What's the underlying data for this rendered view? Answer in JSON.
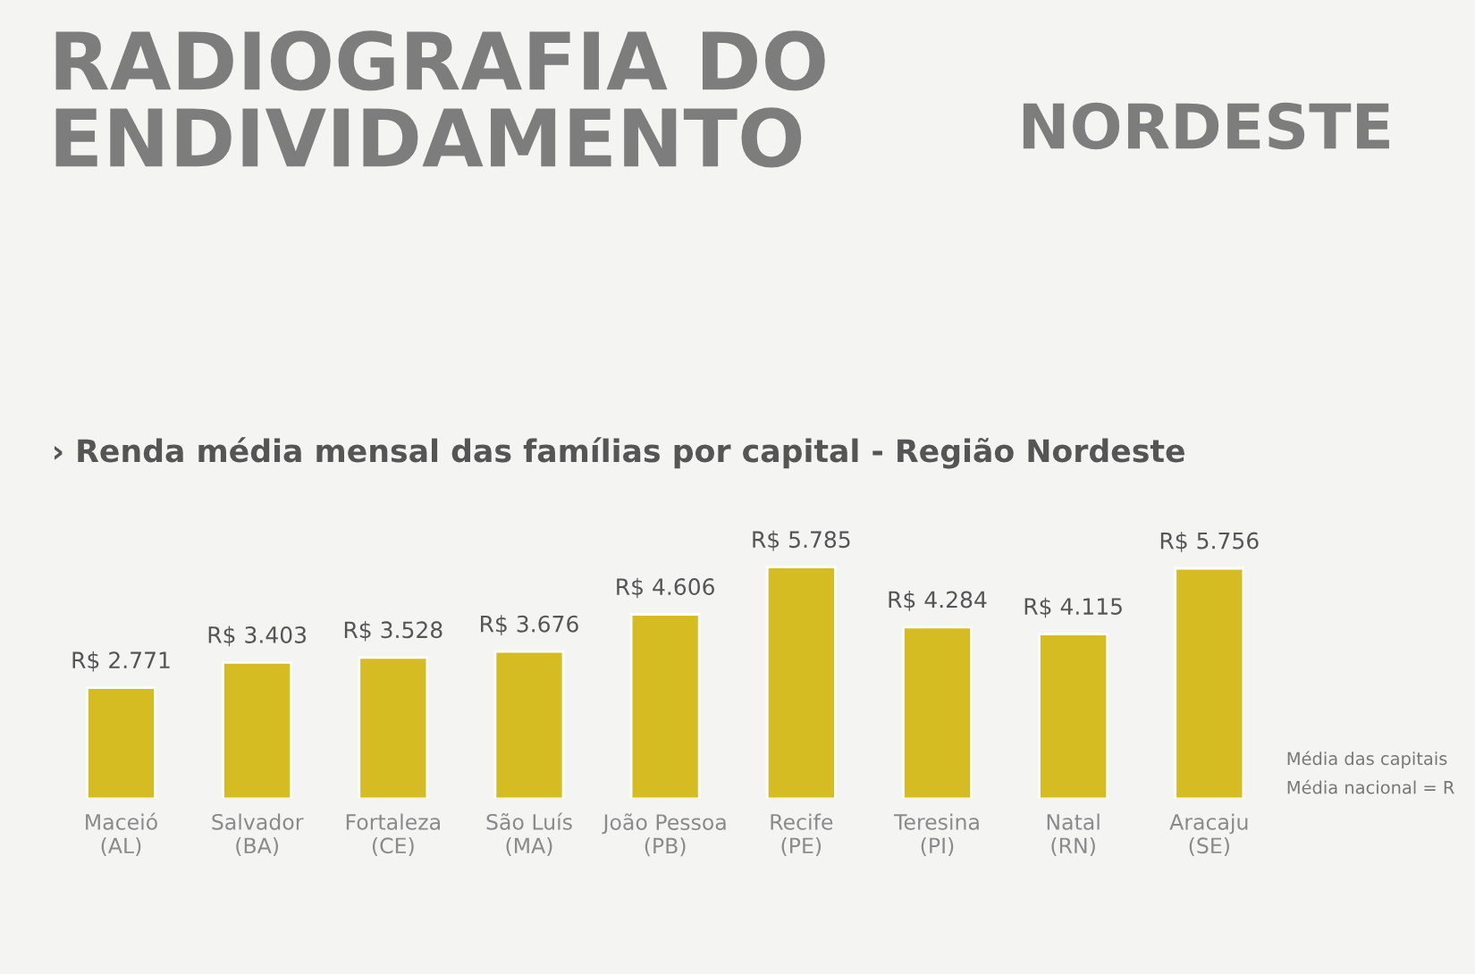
{
  "chart_data": {
    "type": "bar",
    "title": "RADIOGRAFIA DO\nENDIVIDAMENTO",
    "subtitle": "› Renda média mensal das famílias por capital - Região Nordeste",
    "categories": [
      "Maceió\n(AL)",
      "Salvador\n(BA)",
      "Fortaleza\n(CE)",
      "São Luís\n(MA)",
      "João Pessoa\n(PB)",
      "Recife\n(PE)",
      "Teresina\n(PI)",
      "Natal\n(RN)",
      "Aracaju\n(SE)"
    ],
    "values": [
      2771,
      3403,
      3528,
      3676,
      4606,
      5785,
      4284,
      4115,
      5756
    ],
    "value_labels": [
      "R$ 2.771",
      "R$ 3.403",
      "R$ 3.528",
      "R$ 3.676",
      "R$ 4.606",
      "R$ 5.785",
      "R$ 4.284",
      "R$ 4.115",
      "R$ 5.756"
    ],
    "color": "#d4bc22",
    "annotations": [
      "NORDESTE",
      "Média das capitais",
      "Média nacional = R"
    ],
    "grid": false,
    "legend": false
  }
}
